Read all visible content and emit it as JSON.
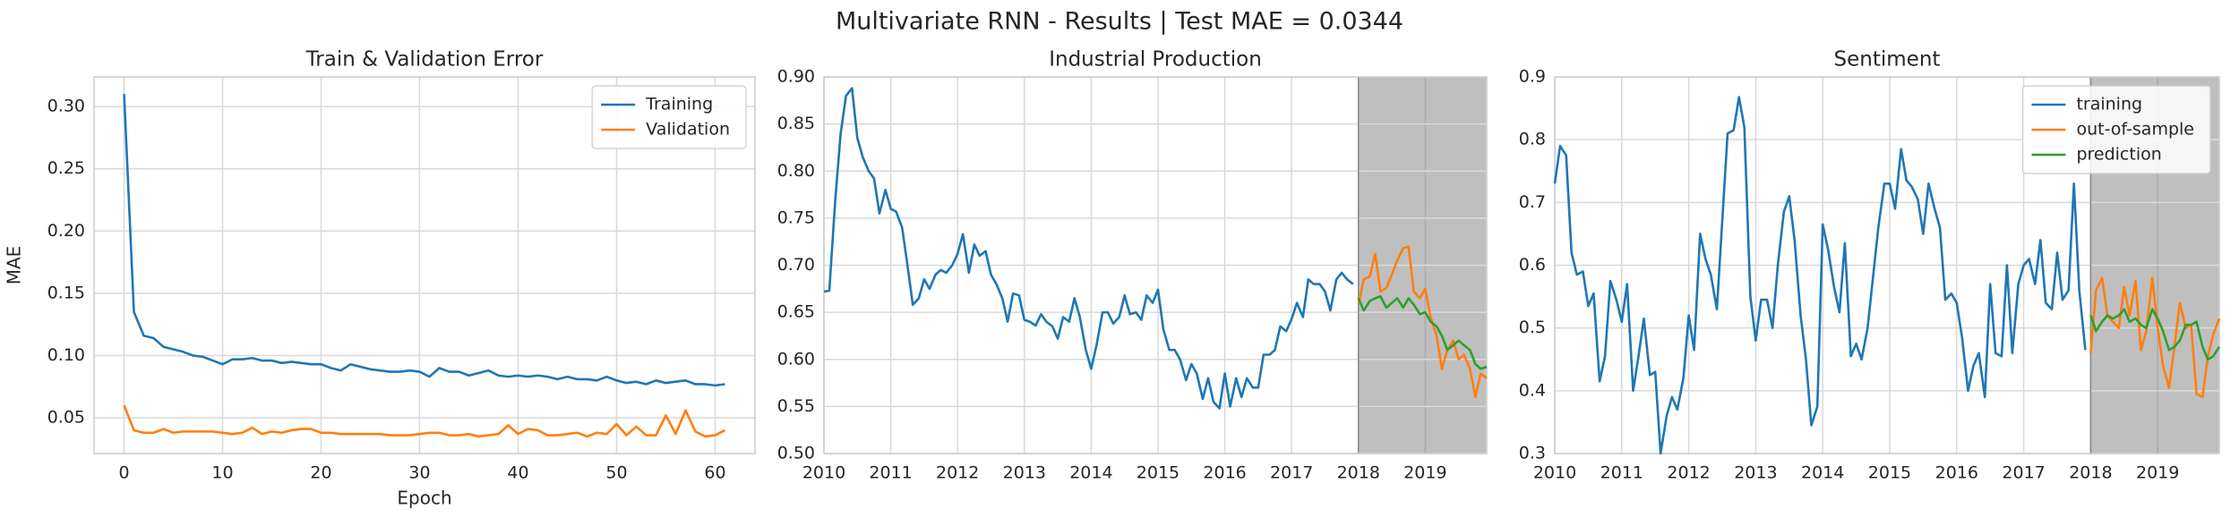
{
  "title": "Multivariate RNN - Results | Test MAE = 0.0344",
  "chart_data": [
    {
      "type": "line",
      "title": "Train & Validation Error",
      "x_label": "Epoch",
      "y_label": "MAE",
      "x": [
        0,
        1,
        2,
        3,
        4,
        5,
        6,
        7,
        8,
        9,
        10,
        11,
        12,
        13,
        14,
        15,
        16,
        17,
        18,
        19,
        20,
        21,
        22,
        23,
        24,
        25,
        26,
        27,
        28,
        29,
        30,
        31,
        32,
        33,
        34,
        35,
        36,
        37,
        38,
        39,
        40,
        41,
        42,
        43,
        44,
        45,
        46,
        47,
        48,
        49,
        50,
        51,
        52,
        53,
        54,
        55,
        56,
        57,
        58,
        59,
        60,
        61
      ],
      "series": [
        {
          "name": "Training",
          "color": "#1f77b4",
          "values": [
            0.31,
            0.135,
            0.116,
            0.114,
            0.107,
            0.105,
            0.103,
            0.1,
            0.099,
            0.096,
            0.093,
            0.097,
            0.097,
            0.098,
            0.096,
            0.096,
            0.094,
            0.095,
            0.094,
            0.093,
            0.093,
            0.09,
            0.088,
            0.093,
            0.091,
            0.089,
            0.088,
            0.087,
            0.087,
            0.088,
            0.087,
            0.083,
            0.09,
            0.087,
            0.087,
            0.084,
            0.086,
            0.088,
            0.084,
            0.083,
            0.084,
            0.083,
            0.084,
            0.083,
            0.081,
            0.083,
            0.081,
            0.081,
            0.08,
            0.083,
            0.08,
            0.078,
            0.079,
            0.077,
            0.08,
            0.078,
            0.079,
            0.08,
            0.077,
            0.077,
            0.076,
            0.077
          ]
        },
        {
          "name": "Validation",
          "color": "#ff7f0e",
          "values": [
            0.06,
            0.04,
            0.038,
            0.038,
            0.041,
            0.038,
            0.039,
            0.039,
            0.039,
            0.039,
            0.038,
            0.037,
            0.038,
            0.042,
            0.037,
            0.039,
            0.038,
            0.04,
            0.041,
            0.041,
            0.038,
            0.038,
            0.037,
            0.037,
            0.037,
            0.037,
            0.037,
            0.036,
            0.036,
            0.036,
            0.037,
            0.038,
            0.038,
            0.036,
            0.036,
            0.037,
            0.035,
            0.036,
            0.037,
            0.044,
            0.037,
            0.041,
            0.04,
            0.036,
            0.036,
            0.037,
            0.038,
            0.035,
            0.038,
            0.037,
            0.045,
            0.036,
            0.043,
            0.036,
            0.036,
            0.052,
            0.037,
            0.056,
            0.039,
            0.035,
            0.036,
            0.04
          ]
        }
      ],
      "xlim": [
        -3.05,
        64.05
      ],
      "ylim": [
        0.0213,
        0.3238
      ],
      "xticks": [
        0,
        10,
        20,
        30,
        40,
        50,
        60
      ],
      "yticks": [
        0.05,
        {
          "value": 0.1,
          "label": "0.10"
        },
        0.15,
        {
          "value": 0.2,
          "label": "0.20"
        },
        0.25,
        {
          "value": 0.3,
          "label": "0.30"
        }
      ],
      "grid": true,
      "legend": "upper right"
    },
    {
      "type": "line",
      "title": "Industrial Production",
      "series": [
        {
          "name": "training",
          "color": "#1f77b4",
          "x": [
            2010,
            2010.08,
            2010.17,
            2010.25,
            2010.33,
            2010.42,
            2010.5,
            2010.58,
            2010.67,
            2010.75,
            2010.83,
            2010.92,
            2011,
            2011.08,
            2011.17,
            2011.25,
            2011.33,
            2011.42,
            2011.5,
            2011.58,
            2011.67,
            2011.75,
            2011.83,
            2011.92,
            2012,
            2012.08,
            2012.17,
            2012.25,
            2012.33,
            2012.42,
            2012.5,
            2012.58,
            2012.67,
            2012.75,
            2012.83,
            2012.92,
            2013,
            2013.08,
            2013.17,
            2013.25,
            2013.33,
            2013.42,
            2013.5,
            2013.58,
            2013.67,
            2013.75,
            2013.83,
            2013.92,
            2014,
            2014.08,
            2014.17,
            2014.25,
            2014.33,
            2014.42,
            2014.5,
            2014.58,
            2014.67,
            2014.75,
            2014.83,
            2014.92,
            2015,
            2015.08,
            2015.17,
            2015.25,
            2015.33,
            2015.42,
            2015.5,
            2015.58,
            2015.67,
            2015.75,
            2015.83,
            2015.92,
            2016,
            2016.08,
            2016.17,
            2016.25,
            2016.33,
            2016.42,
            2016.5,
            2016.58,
            2016.67,
            2016.75,
            2016.83,
            2016.92,
            2017,
            2017.08,
            2017.17,
            2017.25,
            2017.33,
            2017.42,
            2017.5,
            2017.58,
            2017.67,
            2017.75,
            2017.83,
            2017.92
          ],
          "values": [
            0.672,
            0.673,
            0.77,
            0.84,
            0.88,
            0.888,
            0.835,
            0.815,
            0.8,
            0.792,
            0.755,
            0.78,
            0.76,
            0.757,
            0.74,
            0.7,
            0.658,
            0.665,
            0.685,
            0.675,
            0.69,
            0.695,
            0.692,
            0.7,
            0.712,
            0.733,
            0.692,
            0.722,
            0.71,
            0.715,
            0.69,
            0.68,
            0.665,
            0.64,
            0.67,
            0.668,
            0.642,
            0.64,
            0.636,
            0.648,
            0.64,
            0.635,
            0.622,
            0.645,
            0.64,
            0.665,
            0.645,
            0.61,
            0.59,
            0.615,
            0.65,
            0.65,
            0.638,
            0.645,
            0.668,
            0.648,
            0.65,
            0.642,
            0.668,
            0.66,
            0.674,
            0.632,
            0.61,
            0.61,
            0.6,
            0.578,
            0.595,
            0.585,
            0.558,
            0.58,
            0.555,
            0.548,
            0.585,
            0.55,
            0.58,
            0.56,
            0.58,
            0.57,
            0.57,
            0.605,
            0.605,
            0.61,
            0.635,
            0.63,
            0.643,
            0.66,
            0.645,
            0.685,
            0.68,
            0.68,
            0.672,
            0.652,
            0.685,
            0.692,
            0.685,
            0.68
          ]
        },
        {
          "name": "out-of-sample",
          "color": "#ff7f0e",
          "x": [
            2018,
            2018.08,
            2018.17,
            2018.25,
            2018.33,
            2018.42,
            2018.5,
            2018.58,
            2018.67,
            2018.75,
            2018.83,
            2018.92,
            2019,
            2019.08,
            2019.17,
            2019.25,
            2019.33,
            2019.42,
            2019.5,
            2019.58,
            2019.67,
            2019.75,
            2019.83,
            2019.92
          ],
          "values": [
            0.658,
            0.685,
            0.688,
            0.712,
            0.672,
            0.676,
            0.69,
            0.705,
            0.718,
            0.72,
            0.672,
            0.665,
            0.675,
            0.645,
            0.625,
            0.59,
            0.61,
            0.62,
            0.6,
            0.605,
            0.59,
            0.56,
            0.585,
            0.58
          ]
        },
        {
          "name": "prediction",
          "color": "#2ca02c",
          "x": [
            2018,
            2018.08,
            2018.17,
            2018.25,
            2018.33,
            2018.42,
            2018.5,
            2018.58,
            2018.67,
            2018.75,
            2018.83,
            2018.92,
            2019,
            2019.08,
            2019.17,
            2019.25,
            2019.33,
            2019.42,
            2019.5,
            2019.58,
            2019.67,
            2019.75,
            2019.83,
            2019.92
          ],
          "values": [
            0.665,
            0.652,
            0.662,
            0.665,
            0.667,
            0.655,
            0.66,
            0.665,
            0.655,
            0.665,
            0.658,
            0.648,
            0.65,
            0.64,
            0.635,
            0.625,
            0.61,
            0.615,
            0.62,
            0.615,
            0.61,
            0.595,
            0.59,
            0.592
          ]
        }
      ],
      "xlim": [
        2010,
        2019.92
      ],
      "ylim": [
        0.5,
        0.9
      ],
      "xticks": [
        2010,
        2011,
        2012,
        2013,
        2014,
        2015,
        2016,
        2017,
        2018,
        2019
      ],
      "yticks": [
        {
          "value": 0.5,
          "label": "0.50"
        },
        0.55,
        {
          "value": 0.6,
          "label": "0.60"
        },
        0.65,
        {
          "value": 0.7,
          "label": "0.70"
        },
        0.75,
        {
          "value": 0.8,
          "label": "0.80"
        },
        0.85,
        {
          "value": 0.9,
          "label": "0.90"
        }
      ],
      "grid": true,
      "shaded_range": [
        2018,
        2019.92
      ]
    },
    {
      "type": "line",
      "title": "Sentiment",
      "series": [
        {
          "name": "training",
          "color": "#1f77b4",
          "x": [
            2010,
            2010.08,
            2010.17,
            2010.25,
            2010.33,
            2010.42,
            2010.5,
            2010.58,
            2010.67,
            2010.75,
            2010.83,
            2010.92,
            2011,
            2011.08,
            2011.17,
            2011.25,
            2011.33,
            2011.42,
            2011.5,
            2011.58,
            2011.67,
            2011.75,
            2011.83,
            2011.92,
            2012,
            2012.08,
            2012.17,
            2012.25,
            2012.33,
            2012.42,
            2012.5,
            2012.58,
            2012.67,
            2012.75,
            2012.83,
            2012.92,
            2013,
            2013.08,
            2013.17,
            2013.25,
            2013.33,
            2013.42,
            2013.5,
            2013.58,
            2013.67,
            2013.75,
            2013.83,
            2013.92,
            2014,
            2014.08,
            2014.17,
            2014.25,
            2014.33,
            2014.42,
            2014.5,
            2014.58,
            2014.67,
            2014.75,
            2014.83,
            2014.92,
            2015,
            2015.08,
            2015.17,
            2015.25,
            2015.33,
            2015.42,
            2015.5,
            2015.58,
            2015.67,
            2015.75,
            2015.83,
            2015.92,
            2016,
            2016.08,
            2016.17,
            2016.25,
            2016.33,
            2016.42,
            2016.5,
            2016.58,
            2016.67,
            2016.75,
            2016.83,
            2016.92,
            2017,
            2017.08,
            2017.17,
            2017.25,
            2017.33,
            2017.42,
            2017.5,
            2017.58,
            2017.67,
            2017.75,
            2017.83,
            2017.92
          ],
          "values": [
            0.73,
            0.79,
            0.775,
            0.62,
            0.585,
            0.59,
            0.535,
            0.555,
            0.415,
            0.455,
            0.575,
            0.545,
            0.51,
            0.57,
            0.4,
            0.455,
            0.515,
            0.425,
            0.43,
            0.3,
            0.36,
            0.39,
            0.37,
            0.42,
            0.52,
            0.465,
            0.65,
            0.61,
            0.585,
            0.53,
            0.67,
            0.81,
            0.815,
            0.868,
            0.82,
            0.55,
            0.48,
            0.545,
            0.545,
            0.5,
            0.6,
            0.685,
            0.71,
            0.64,
            0.52,
            0.45,
            0.345,
            0.375,
            0.665,
            0.625,
            0.565,
            0.525,
            0.635,
            0.455,
            0.475,
            0.45,
            0.5,
            0.58,
            0.66,
            0.73,
            0.73,
            0.69,
            0.785,
            0.735,
            0.725,
            0.705,
            0.65,
            0.73,
            0.69,
            0.66,
            0.545,
            0.555,
            0.54,
            0.485,
            0.4,
            0.44,
            0.46,
            0.39,
            0.57,
            0.46,
            0.455,
            0.6,
            0.46,
            0.57,
            0.6,
            0.61,
            0.57,
            0.64,
            0.54,
            0.53,
            0.62,
            0.545,
            0.56,
            0.73,
            0.56,
            0.465
          ]
        },
        {
          "name": "out-of-sample",
          "color": "#ff7f0e",
          "x": [
            2018,
            2018.08,
            2018.17,
            2018.25,
            2018.33,
            2018.42,
            2018.5,
            2018.58,
            2018.67,
            2018.75,
            2018.83,
            2018.92,
            2019,
            2019.08,
            2019.17,
            2019.25,
            2019.33,
            2019.42,
            2019.5,
            2019.58,
            2019.67,
            2019.75,
            2019.83,
            2019.92
          ],
          "values": [
            0.46,
            0.56,
            0.58,
            0.52,
            0.51,
            0.5,
            0.565,
            0.52,
            0.575,
            0.465,
            0.495,
            0.58,
            0.5,
            0.44,
            0.405,
            0.47,
            0.54,
            0.5,
            0.505,
            0.395,
            0.39,
            0.455,
            0.49,
            0.515
          ]
        },
        {
          "name": "prediction",
          "color": "#2ca02c",
          "x": [
            2018,
            2018.08,
            2018.17,
            2018.25,
            2018.33,
            2018.42,
            2018.5,
            2018.58,
            2018.67,
            2018.75,
            2018.83,
            2018.92,
            2019,
            2019.08,
            2019.17,
            2019.25,
            2019.33,
            2019.42,
            2019.5,
            2019.58,
            2019.67,
            2019.75,
            2019.83,
            2019.92
          ],
          "values": [
            0.52,
            0.495,
            0.51,
            0.52,
            0.515,
            0.52,
            0.53,
            0.51,
            0.515,
            0.505,
            0.5,
            0.53,
            0.515,
            0.495,
            0.465,
            0.47,
            0.48,
            0.505,
            0.505,
            0.51,
            0.47,
            0.45,
            0.455,
            0.47
          ]
        }
      ],
      "xlim": [
        2010,
        2019.92
      ],
      "ylim": [
        0.3,
        0.9
      ],
      "xticks": [
        2010,
        2011,
        2012,
        2013,
        2014,
        2015,
        2016,
        2017,
        2018,
        2019
      ],
      "yticks": [
        0.3,
        0.4,
        0.5,
        0.6,
        0.7,
        0.8,
        0.9
      ],
      "grid": true,
      "shaded_range": [
        2018,
        2019.92
      ],
      "legend": "upper right"
    }
  ]
}
